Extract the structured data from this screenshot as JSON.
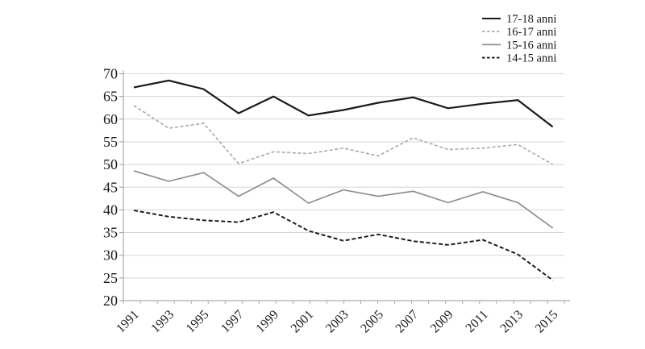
{
  "chart_data": {
    "type": "line",
    "title": "",
    "xlabel": "",
    "ylabel": "",
    "x_categories": [
      "1991",
      "1993",
      "1995",
      "1997",
      "1999",
      "2001",
      "2003",
      "2005",
      "2007",
      "2009",
      "2011",
      "2013",
      "2015"
    ],
    "series": [
      {
        "name": "17-18 anni",
        "color": "#1a1a1a",
        "dash": null,
        "width": 2.2,
        "values": [
          67.0,
          68.5,
          66.6,
          61.3,
          65.0,
          60.8,
          62.0,
          63.6,
          64.8,
          62.4,
          63.4,
          64.2,
          58.3
        ]
      },
      {
        "name": "16-17 anni",
        "color": "#a8a8a8",
        "dash": "4 2.6",
        "width": 1.6,
        "values": [
          63.0,
          58.0,
          59.1,
          50.2,
          52.8,
          52.4,
          53.6,
          51.9,
          55.9,
          53.3,
          53.6,
          54.4,
          50.0
        ]
      },
      {
        "name": "15-16 anni",
        "color": "#8f8f8f",
        "dash": null,
        "width": 1.7,
        "values": [
          48.6,
          46.3,
          48.2,
          43.0,
          47.0,
          41.5,
          44.4,
          43.0,
          44.1,
          41.6,
          44.0,
          41.6,
          36.0
        ]
      },
      {
        "name": "14-15 anni",
        "color": "#141414",
        "dash": "5 2.8",
        "width": 1.9,
        "values": [
          39.9,
          38.5,
          37.7,
          37.3,
          39.5,
          35.4,
          33.2,
          34.6,
          33.1,
          32.3,
          33.4,
          30.2,
          24.5
        ]
      }
    ],
    "ylim": [
      20,
      70
    ],
    "ytick_labels": [
      "20",
      "25",
      "30",
      "35",
      "40",
      "45",
      "50",
      "55",
      "60",
      "65",
      "70"
    ],
    "grid": "horizontal",
    "legend_position": "top-right",
    "colors": {
      "background": "#ffffff",
      "grid_color": "#d6d6d6",
      "axis_color": "#ababab",
      "text_color": "#1a1a1a"
    }
  }
}
